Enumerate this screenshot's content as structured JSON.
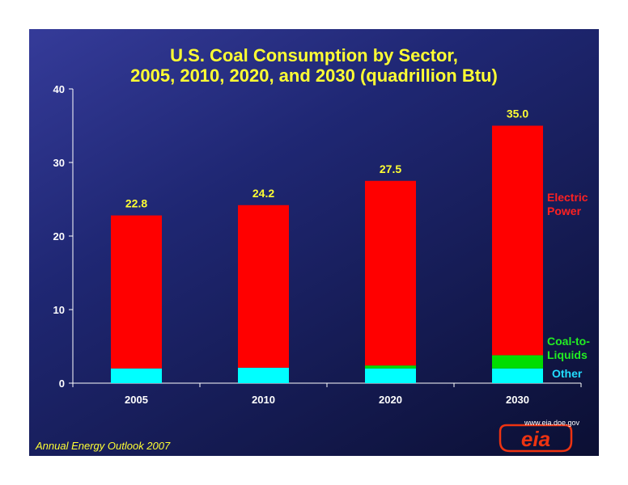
{
  "slide": {
    "title_line1": "U.S. Coal Consumption by Sector,",
    "title_line2": "2005, 2010, 2020, and 2030 (quadrillion Btu)",
    "source": "Annual Energy Outlook 2007",
    "logo_text": "eia",
    "logo_url": "www.eia.doe.gov"
  },
  "colors": {
    "electric_power": "#ff0000",
    "coal_to_liquids": "#00dd00",
    "other": "#00ffff",
    "title": "#ffff33",
    "logo": "#ee3311"
  },
  "chart_data": {
    "type": "bar",
    "stacked": true,
    "title": "U.S. Coal Consumption by Sector, 2005, 2010, 2020, and 2030 (quadrillion Btu)",
    "categories": [
      "2005",
      "2010",
      "2020",
      "2030"
    ],
    "yticks": [
      "0",
      "10",
      "20",
      "30",
      "40"
    ],
    "ylim": [
      0,
      40
    ],
    "grid": false,
    "legend_placement": "right (inline labels)",
    "series": [
      {
        "name": "Other",
        "values": [
          2.0,
          2.1,
          2.0,
          2.0
        ],
        "color": "#00ffff"
      },
      {
        "name": "Coal-to-Liquids",
        "values": [
          0.0,
          0.0,
          0.4,
          1.8
        ],
        "color": "#00dd00"
      },
      {
        "name": "Electric Power",
        "values": [
          20.8,
          22.1,
          25.1,
          31.2
        ],
        "color": "#ff0000"
      }
    ],
    "totals": [
      "22.8",
      "24.2",
      "27.5",
      "35.0"
    ],
    "legend": {
      "electric_power": [
        "Electric",
        "Power"
      ],
      "coal_to_liquids": [
        "Coal-to-",
        "Liquids"
      ],
      "other": "Other"
    }
  }
}
